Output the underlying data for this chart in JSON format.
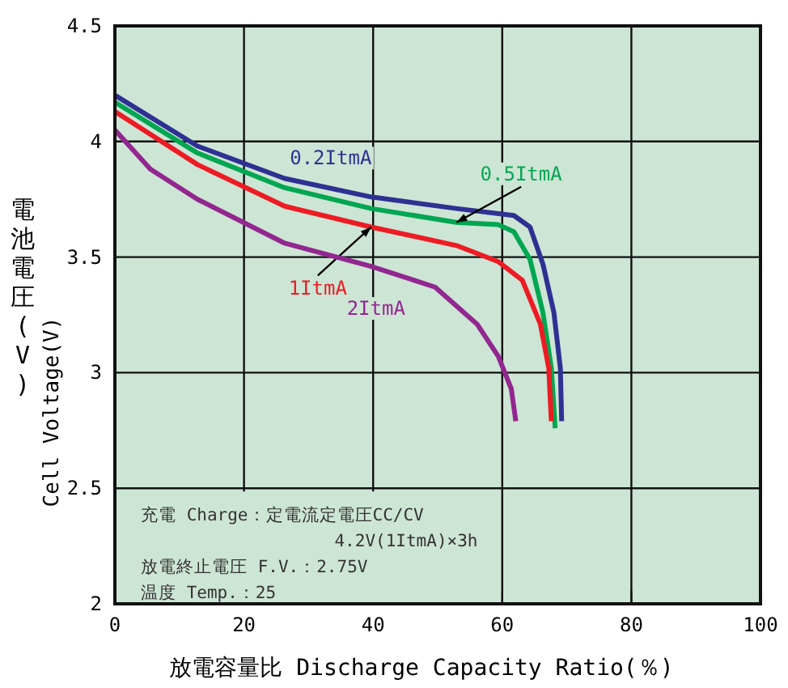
{
  "chart_data": {
    "type": "line",
    "xlabel": "放電容量比 Discharge Capacity Ratio(％)",
    "ylabel": "電池電圧(V)\nCell Voltage(V)",
    "xlim": [
      0,
      100
    ],
    "xticks": [
      0,
      20,
      40,
      60,
      80,
      100
    ],
    "ylim": [
      2,
      4.5
    ],
    "yticks": [
      2,
      2.5,
      3,
      3.5,
      4,
      4.5
    ],
    "grid": true,
    "line_style": "solid",
    "marker": "none",
    "series": [
      {
        "name": "0.2ItmA",
        "color": "#2e3192",
        "x": [
          0,
          12.8,
          26.3,
          39.7,
          52.9,
          61.8,
          64.3,
          66.3,
          68,
          69,
          69.2
        ],
        "values": [
          4.2,
          3.98,
          3.84,
          3.76,
          3.71,
          3.68,
          3.63,
          3.47,
          3.26,
          3.02,
          2.79
        ]
      },
      {
        "name": "0.5ItmA",
        "color": "#00a651",
        "x": [
          0,
          12.8,
          26.3,
          39.7,
          52.9,
          59.4,
          61.8,
          64.3,
          66.3,
          67.6,
          68.2
        ],
        "values": [
          4.17,
          3.95,
          3.8,
          3.71,
          3.65,
          3.64,
          3.61,
          3.49,
          3.26,
          3.02,
          2.76
        ]
      },
      {
        "name": "1ItmA",
        "color": "#ed1c24",
        "x": [
          0,
          12.8,
          26.3,
          39.7,
          52.9,
          59.4,
          63.1,
          65.9,
          67.2,
          67.6
        ],
        "values": [
          4.13,
          3.9,
          3.72,
          3.63,
          3.55,
          3.48,
          3.4,
          3.21,
          3.02,
          2.79
        ]
      },
      {
        "name": "2ItmA",
        "color": "#92278f",
        "x": [
          0,
          5.5,
          12.8,
          26.3,
          39.7,
          49.6,
          56.1,
          59.4,
          61.4,
          62.1
        ],
        "values": [
          4.05,
          3.88,
          3.75,
          3.56,
          3.46,
          3.37,
          3.21,
          3.07,
          2.93,
          2.79
        ]
      }
    ],
    "annotations": [
      "充電 Charge：定電流定電圧CC/CV\n4.2V(1ItmA)×3h",
      "放電終止電圧 F.V.：2.75V",
      "温度 Temp.：25"
    ]
  }
}
